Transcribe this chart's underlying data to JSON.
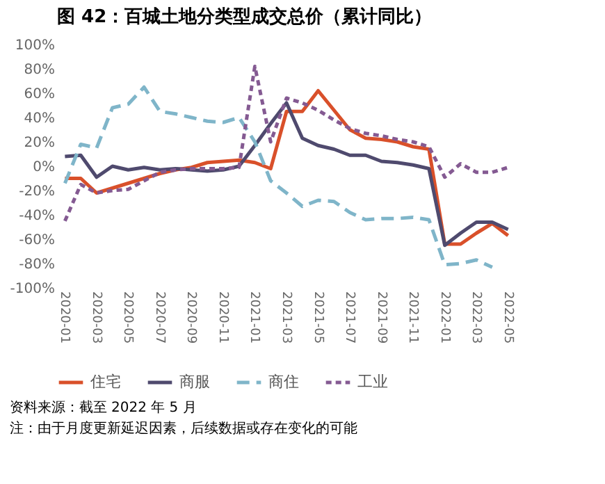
{
  "chart_data": {
    "type": "line",
    "title": "图 42：百城土地分类型成交总价（累计同比）",
    "categories": [
      "2020-01",
      null,
      "2020-03",
      null,
      "2020-05",
      null,
      "2020-07",
      null,
      "2020-09",
      null,
      "2020-11",
      null,
      "2021-01",
      null,
      "2021-03",
      null,
      "2021-05",
      null,
      "2021-07",
      null,
      "2021-09",
      null,
      "2021-11",
      null,
      "2022-01",
      null,
      "2022-03",
      null,
      "2022-05"
    ],
    "series": [
      {
        "name": "住宅",
        "color": "#d9502a",
        "line_style": "solid",
        "values": [
          -10,
          -10,
          -22,
          -18,
          -14,
          -10,
          -6,
          -3,
          -1,
          3,
          4,
          5,
          3,
          -2,
          45,
          45,
          62,
          46,
          30,
          23,
          22,
          20,
          16,
          14,
          -64,
          -64,
          -55,
          -47,
          -57
        ]
      },
      {
        "name": "商服",
        "color": "#4f4a6e",
        "line_style": "solid",
        "values": [
          8,
          9,
          -9,
          0,
          -3,
          -1,
          -3,
          -2,
          -3,
          -4,
          -3,
          0,
          17,
          35,
          52,
          23,
          17,
          14,
          9,
          9,
          4,
          3,
          1,
          -2,
          -65,
          -55,
          -46,
          -46,
          -52
        ]
      },
      {
        "name": "商住",
        "color": "#7fb5c9",
        "line_style": "dashed",
        "values": [
          -14,
          18,
          15,
          48,
          51,
          65,
          45,
          43,
          40,
          37,
          36,
          40,
          20,
          -12,
          -22,
          -33,
          -28,
          -29,
          -38,
          -44,
          -43,
          -43,
          -42,
          -44,
          -81,
          -80,
          -77,
          -83,
          null
        ]
      },
      {
        "name": "工业",
        "color": "#845a92",
        "line_style": "dotted",
        "values": [
          -45,
          -15,
          -22,
          -20,
          -19,
          -12,
          -5,
          -3,
          -2,
          -2,
          -2,
          -1,
          82,
          20,
          56,
          52,
          46,
          38,
          31,
          27,
          25,
          22,
          20,
          16,
          -9,
          2,
          -5,
          -5,
          -1
        ]
      }
    ],
    "ylim": [
      -100,
      100
    ],
    "yticks": [
      {
        "value": -100,
        "label": "-100%"
      },
      {
        "value": -80,
        "label": "-80%"
      },
      {
        "value": -60,
        "label": "-60%"
      },
      {
        "value": -40,
        "label": "-40%"
      },
      {
        "value": -20,
        "label": "-20%"
      },
      {
        "value": 0,
        "label": "0%"
      },
      {
        "value": 20,
        "label": "20%"
      },
      {
        "value": 40,
        "label": "40%"
      },
      {
        "value": 60,
        "label": "60%"
      },
      {
        "value": 80,
        "label": "80%"
      },
      {
        "value": 100,
        "label": "100%"
      }
    ],
    "grid": false,
    "legend": "bottom",
    "marker": "none",
    "annotations": [
      "资料来源：截至 2022 年 5 月",
      "注：由于月度更新延迟因素，后续数据或存在变化的可能"
    ]
  }
}
